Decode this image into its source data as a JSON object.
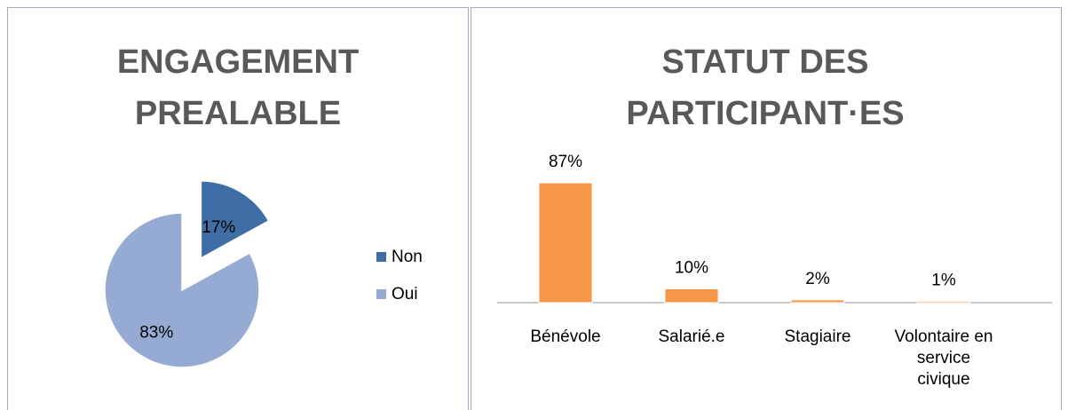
{
  "chart_data": [
    {
      "type": "pie",
      "title_lines": [
        "ENGAGEMENT",
        "PREALABLE"
      ],
      "categories": [
        "Non",
        "Oui"
      ],
      "values": [
        17,
        83
      ],
      "value_labels": [
        "17%",
        "83%"
      ],
      "colors": [
        "#3f6ea6",
        "#95abd3"
      ],
      "legend": "right"
    },
    {
      "type": "bar",
      "title_lines": [
        "STATUT DES",
        "PARTICIPANT·ES"
      ],
      "categories": [
        "Bénévole",
        "Salarié.e",
        "Stagiaire",
        "Volontaire en service civique"
      ],
      "values": [
        87,
        10,
        2,
        1
      ],
      "value_labels": [
        "87%",
        "10%",
        "2%",
        "1%"
      ],
      "color": "#f79646"
    }
  ]
}
